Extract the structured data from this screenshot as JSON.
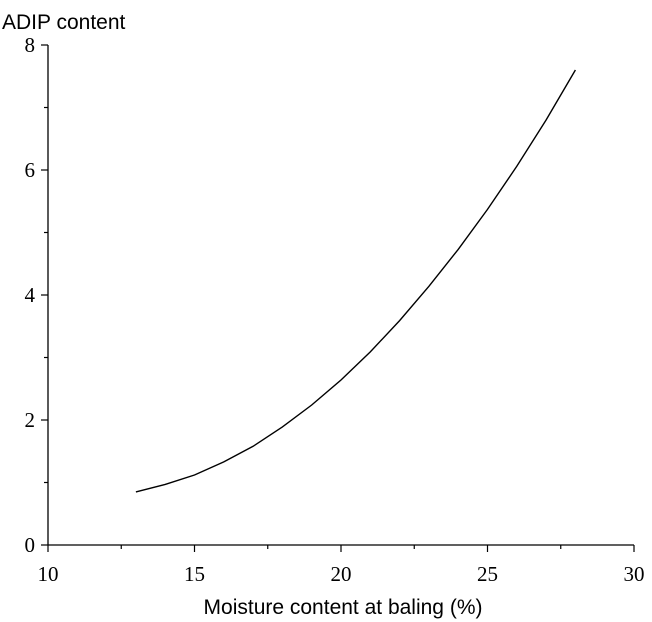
{
  "chart_data": {
    "type": "line",
    "title": "",
    "ylabel": "ADIP content",
    "xlabel": "Moisture content at baling (%)",
    "xlim": [
      10,
      30
    ],
    "ylim": [
      0,
      8
    ],
    "x_ticks": [
      "10",
      "15",
      "20",
      "25",
      "30"
    ],
    "y_ticks": [
      "0",
      "2",
      "4",
      "6",
      "8"
    ],
    "grid": false,
    "legend": "none",
    "series": [
      {
        "x": [
          13,
          14,
          15,
          16,
          17,
          18,
          19,
          20,
          21,
          22,
          23,
          24,
          25,
          26,
          27,
          28
        ],
        "values": [
          0.85,
          0.97,
          1.12,
          1.33,
          1.58,
          1.89,
          2.24,
          2.64,
          3.09,
          3.59,
          4.14,
          4.73,
          5.37,
          6.06,
          6.8,
          7.6
        ]
      }
    ]
  }
}
